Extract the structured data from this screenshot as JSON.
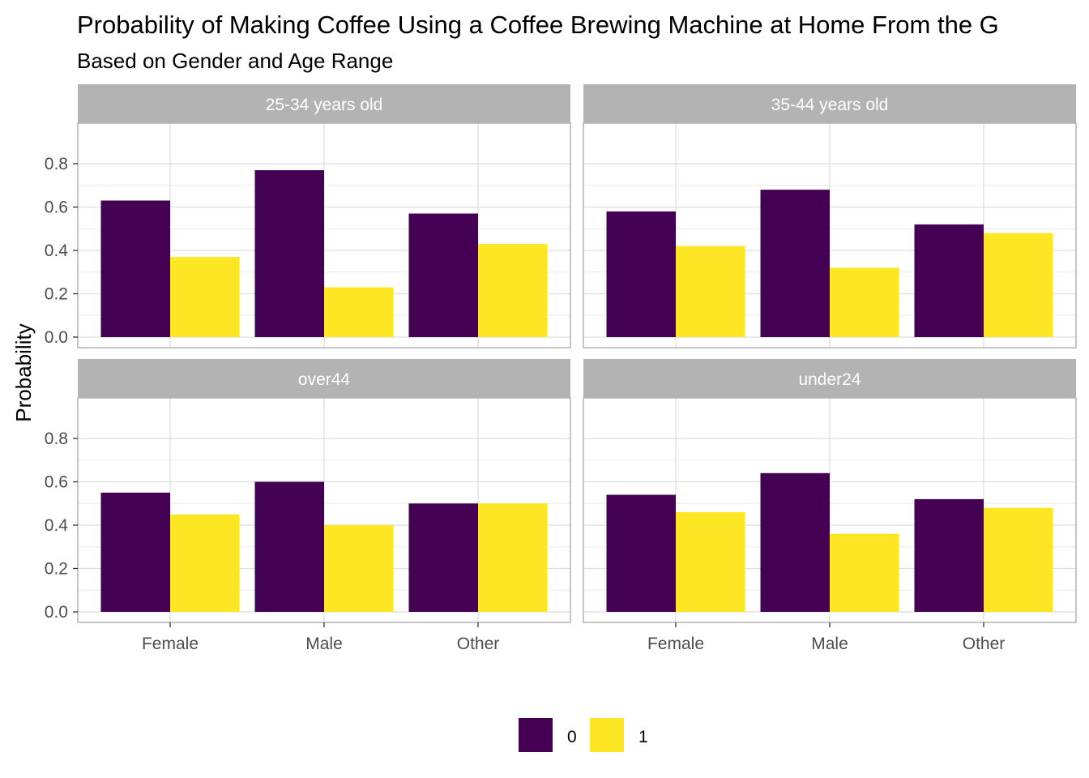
{
  "chart_data": {
    "type": "bar",
    "title": "Probability of Making Coffee Using a Coffee Brewing Machine at Home From the G",
    "subtitle": "Based on Gender and Age Range",
    "xlabel": "",
    "ylabel": "Probability",
    "ylim": [
      0,
      0.8
    ],
    "y_ticks": [
      "0.0",
      "0.2",
      "0.4",
      "0.6",
      "0.8"
    ],
    "y_tick_values": [
      0,
      0.2,
      0.4,
      0.6,
      0.8
    ],
    "categories": [
      "Female",
      "Male",
      "Other"
    ],
    "grid": true,
    "legend_position": "bottom",
    "legend": [
      {
        "label": "0",
        "color": "#440154"
      },
      {
        "label": "1",
        "color": "#FDE725"
      }
    ],
    "facets": [
      {
        "label": "25-34 years old",
        "series": [
          {
            "name": "0",
            "values": [
              0.63,
              0.77,
              0.57
            ]
          },
          {
            "name": "1",
            "values": [
              0.37,
              0.23,
              0.43
            ]
          }
        ]
      },
      {
        "label": "35-44 years old",
        "series": [
          {
            "name": "0",
            "values": [
              0.58,
              0.68,
              0.52
            ]
          },
          {
            "name": "1",
            "values": [
              0.42,
              0.32,
              0.48
            ]
          }
        ]
      },
      {
        "label": "over44",
        "series": [
          {
            "name": "0",
            "values": [
              0.55,
              0.6,
              0.5
            ]
          },
          {
            "name": "1",
            "values": [
              0.45,
              0.4,
              0.5
            ]
          }
        ]
      },
      {
        "label": "under24",
        "series": [
          {
            "name": "0",
            "values": [
              0.54,
              0.64,
              0.52
            ]
          },
          {
            "name": "1",
            "values": [
              0.46,
              0.36,
              0.48
            ]
          }
        ]
      }
    ]
  }
}
